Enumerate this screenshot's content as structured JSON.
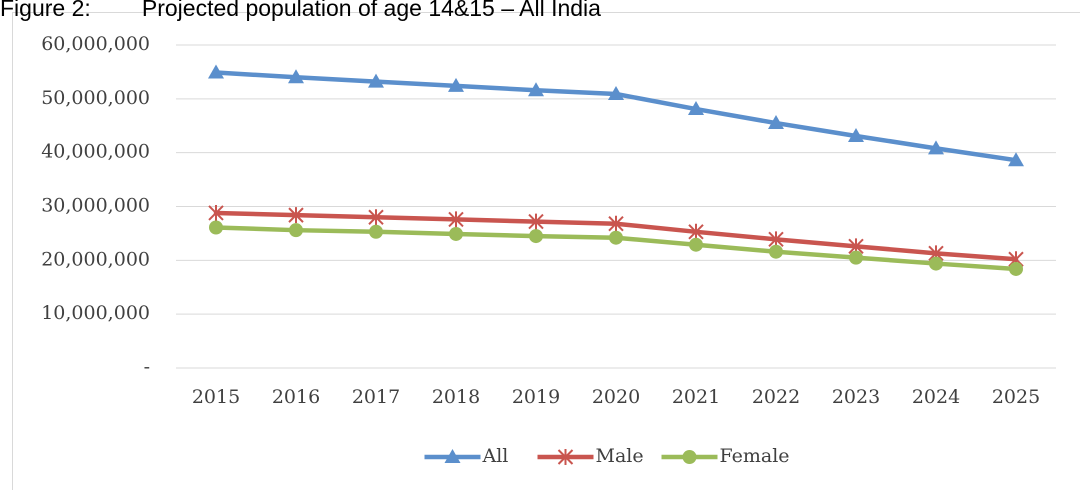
{
  "chart_data": {
    "type": "line",
    "title": "Figure 2:        Projected population of age 14&15 – All India",
    "categories": [
      "2015",
      "2016",
      "2017",
      "2018",
      "2019",
      "2020",
      "2021",
      "2022",
      "2023",
      "2024",
      "2025"
    ],
    "series": [
      {
        "name": "All",
        "color": "#5b8fcc",
        "marker": "triangle",
        "values": [
          54900000,
          54000000,
          53200000,
          52400000,
          51600000,
          50900000,
          48100000,
          45500000,
          43100000,
          40800000,
          38600000
        ]
      },
      {
        "name": "Male",
        "color": "#c9554f",
        "marker": "star",
        "values": [
          28800000,
          28400000,
          28000000,
          27600000,
          27200000,
          26800000,
          25300000,
          23900000,
          22600000,
          21300000,
          20200000
        ]
      },
      {
        "name": "Female",
        "color": "#9bbb59",
        "marker": "circle",
        "values": [
          26100000,
          25600000,
          25300000,
          24900000,
          24500000,
          24200000,
          22900000,
          21600000,
          20500000,
          19400000,
          18400000
        ]
      }
    ],
    "ylim": [
      0,
      60000000
    ],
    "yticks": [
      {
        "value": 0,
        "label": "-"
      },
      {
        "value": 10000000,
        "label": "10,000,000"
      },
      {
        "value": 20000000,
        "label": "20,000,000"
      },
      {
        "value": 30000000,
        "label": "30,000,000"
      },
      {
        "value": 40000000,
        "label": "40,000,000"
      },
      {
        "value": 50000000,
        "label": "50,000,000"
      },
      {
        "value": 60000000,
        "label": "60,000,000"
      }
    ],
    "grid": true,
    "legend": "bottom"
  }
}
